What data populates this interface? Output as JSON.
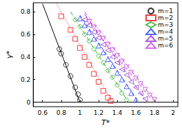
{
  "chart_data": {
    "type": "scatter",
    "x_label": "T*",
    "y_label": "γ*",
    "xlim": [
      0.5,
      2.05
    ],
    "xticks": [
      0.6,
      0.8,
      1,
      1.2,
      1.4,
      1.6,
      1.8,
      2
    ],
    "ylim": [
      -0.04,
      0.88
    ],
    "yticks": [
      0,
      0.2,
      0.4,
      0.6,
      0.8
    ],
    "grid": false,
    "legend": "top-right",
    "series": [
      {
        "name": "m=1",
        "color": "#000000",
        "marker": "circle",
        "line_style": "solid",
        "x": [
          0.78,
          0.8,
          0.85,
          0.9,
          0.95,
          0.98,
          1.0
        ],
        "values": [
          0.47,
          0.43,
          0.33,
          0.23,
          0.13,
          0.07,
          0.02
        ],
        "fit": {
          "x": [
            0.6,
            1.0
          ],
          "values": [
            0.87,
            0.0
          ]
        }
      },
      {
        "name": "m=2",
        "color": "#ee1111",
        "marker": "square",
        "line_style": "dotted",
        "x": [
          0.8,
          0.9,
          0.95,
          1.0,
          1.05,
          1.1,
          1.15,
          1.2,
          1.25,
          1.3,
          1.33
        ],
        "values": [
          0.76,
          0.64,
          0.56,
          0.48,
          0.4,
          0.33,
          0.25,
          0.18,
          0.1,
          0.04,
          0.01
        ],
        "fit": {
          "x": [
            0.75,
            1.35
          ],
          "values": [
            0.87,
            0.0
          ]
        }
      },
      {
        "name": "m=3",
        "color": "#22aa22",
        "marker": "diamond",
        "line_style": "dashdot",
        "x": [
          0.95,
          1.0,
          1.05,
          1.1,
          1.15,
          1.2,
          1.25,
          1.3,
          1.35,
          1.4,
          1.45,
          1.5
        ],
        "values": [
          0.73,
          0.67,
          0.6,
          0.54,
          0.47,
          0.41,
          0.35,
          0.28,
          0.22,
          0.15,
          0.08,
          0.02
        ],
        "fit": {
          "x": [
            0.9,
            1.52
          ],
          "values": [
            0.8,
            0.0
          ]
        }
      },
      {
        "name": "m=4",
        "color": "#1f3fff",
        "marker": "triangle-up",
        "line_style": "dashed",
        "x": [
          1.0,
          1.05,
          1.1,
          1.15,
          1.2,
          1.25,
          1.3,
          1.35,
          1.4,
          1.45,
          1.5,
          1.55,
          1.6
        ],
        "values": [
          0.74,
          0.68,
          0.62,
          0.56,
          0.5,
          0.44,
          0.38,
          0.32,
          0.26,
          0.2,
          0.14,
          0.08,
          0.02
        ],
        "fit": {
          "x": [
            1.0,
            1.63
          ],
          "values": [
            0.77,
            0.0
          ]
        }
      },
      {
        "name": "m=5",
        "color": "#9933cc",
        "marker": "triangle-left",
        "line_style": "dashdotdot",
        "x": [
          1.05,
          1.1,
          1.15,
          1.2,
          1.25,
          1.3,
          1.35,
          1.4,
          1.45,
          1.5,
          1.55,
          1.6,
          1.65,
          1.7
        ],
        "values": [
          0.73,
          0.68,
          0.62,
          0.57,
          0.51,
          0.46,
          0.4,
          0.35,
          0.29,
          0.24,
          0.18,
          0.13,
          0.08,
          0.03
        ],
        "fit": {
          "x": [
            1.05,
            1.72
          ],
          "values": [
            0.78,
            0.0
          ]
        }
      },
      {
        "name": "m=6",
        "color": "#cc44dd",
        "marker": "triangle-down",
        "line_style": "dashdot",
        "x": [
          1.1,
          1.15,
          1.2,
          1.25,
          1.3,
          1.35,
          1.4,
          1.45,
          1.5,
          1.55,
          1.6,
          1.65,
          1.7,
          1.75,
          1.8
        ],
        "values": [
          0.71,
          0.66,
          0.61,
          0.56,
          0.51,
          0.46,
          0.41,
          0.36,
          0.31,
          0.26,
          0.21,
          0.16,
          0.11,
          0.06,
          0.02
        ],
        "fit": {
          "x": [
            1.05,
            1.82
          ],
          "values": [
            0.8,
            0.0
          ]
        }
      }
    ]
  }
}
